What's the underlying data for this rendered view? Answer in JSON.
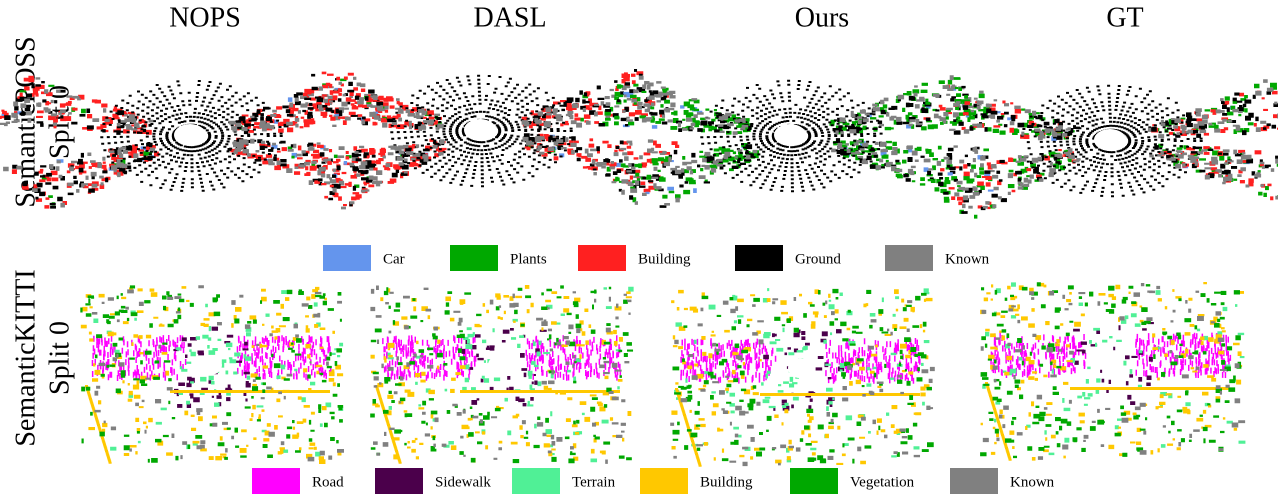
{
  "columns": [
    "NOPS",
    "DASL",
    "Ours",
    "GT"
  ],
  "rows": [
    {
      "label": [
        "SemanticPOSS",
        "Split 0"
      ],
      "legend": [
        {
          "label": "Car",
          "color": "#6495ed"
        },
        {
          "label": "Plants",
          "color": "#00a800"
        },
        {
          "label": "Building",
          "color": "#ff2020"
        },
        {
          "label": "Ground",
          "color": "#000000"
        },
        {
          "label": "Known",
          "color": "#808080"
        }
      ]
    },
    {
      "label": [
        "SemanticKITTI",
        "Split 0"
      ],
      "legend": [
        {
          "label": "Road",
          "color": "#ff00ff"
        },
        {
          "label": "Sidewalk",
          "color": "#4b004b"
        },
        {
          "label": "Terrain",
          "color": "#50f096"
        },
        {
          "label": "Building",
          "color": "#ffc800"
        },
        {
          "label": "Vegetation",
          "color": "#00a800"
        },
        {
          "label": "Known",
          "color": "#808080"
        }
      ]
    }
  ]
}
